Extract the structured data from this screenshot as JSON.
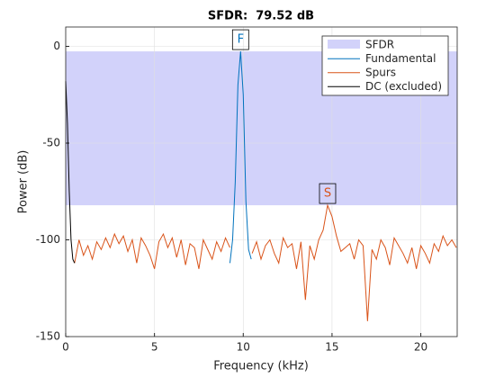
{
  "chart_data": {
    "type": "line",
    "title": "SFDR:  79.52 dB",
    "x_label": "Frequency (kHz)",
    "y_label": "Power (dB)",
    "xlim": [
      0,
      22.05
    ],
    "ylim": [
      -150,
      10
    ],
    "xticks": [
      0,
      5,
      10,
      15,
      20
    ],
    "yticks": [
      -150,
      -100,
      -50,
      0
    ],
    "grid": true,
    "legend": "upper right",
    "band": {
      "name": "SFDR",
      "color": "#d2d2fa",
      "range": [
        -82.12,
        -2.6
      ]
    },
    "series": [
      {
        "name": "Fundamental",
        "color": "#0072bd",
        "x": [
          9.25,
          9.4,
          9.55,
          9.7,
          9.85,
          10.0,
          10.15,
          10.3,
          10.45
        ],
        "values": [
          -112,
          -100,
          -70,
          -20,
          -2.6,
          -25,
          -80,
          -105,
          -110
        ]
      },
      {
        "name": "Spurs",
        "color": "#d95319",
        "x": [
          0.5,
          0.75,
          1.0,
          1.25,
          1.5,
          1.75,
          2.0,
          2.25,
          2.5,
          2.75,
          3.0,
          3.25,
          3.5,
          3.75,
          4.0,
          4.25,
          4.5,
          4.75,
          5.0,
          5.25,
          5.5,
          5.75,
          6.0,
          6.25,
          6.5,
          6.75,
          7.0,
          7.25,
          7.5,
          7.75,
          8.0,
          8.25,
          8.5,
          8.75,
          9.0,
          9.25,
          9.85,
          10.5,
          10.75,
          11.0,
          11.25,
          11.5,
          11.75,
          12.0,
          12.25,
          12.5,
          12.75,
          13.0,
          13.25,
          13.5,
          13.75,
          14.0,
          14.25,
          14.5,
          14.75,
          15.0,
          15.25,
          15.5,
          15.75,
          16.0,
          16.25,
          16.5,
          16.75,
          17.0,
          17.25,
          17.5,
          17.75,
          18.0,
          18.25,
          18.5,
          18.75,
          19.0,
          19.25,
          19.5,
          19.75,
          20.0,
          20.25,
          20.5,
          20.75,
          21.0,
          21.25,
          21.5,
          21.75,
          22.0
        ],
        "values": [
          -112,
          -100,
          -108,
          -103,
          -110,
          -101,
          -105,
          -99,
          -104,
          -97,
          -102,
          -98,
          -106,
          -100,
          -112,
          -99,
          -103,
          -108,
          -115,
          -101,
          -97,
          -104,
          -99,
          -109,
          -100,
          -113,
          -102,
          -104,
          -115,
          -100,
          -105,
          -110,
          -101,
          -106,
          -99,
          -104,
          null,
          -107,
          -101,
          -110,
          -103,
          -100,
          -107,
          -112,
          -99,
          -104,
          -102,
          -115,
          -101,
          -131,
          -103,
          -110,
          -100,
          -95,
          -82.12,
          -88,
          -98,
          -106,
          -104,
          -102,
          -110,
          -100,
          -103,
          -142,
          -105,
          -110,
          -100,
          -104,
          -113,
          -99,
          -103,
          -107,
          -112,
          -104,
          -115,
          -103,
          -107,
          -112,
          -102,
          -106,
          -98,
          -103,
          -100,
          -104
        ]
      },
      {
        "name": "DC (excluded)",
        "color": "#000000",
        "x": [
          0,
          0.1,
          0.2,
          0.3,
          0.4,
          0.5
        ],
        "values": [
          -18,
          -40,
          -75,
          -100,
          -110,
          -112
        ]
      }
    ],
    "annotations": [
      {
        "label": "F",
        "x": 9.85,
        "y": -2.6,
        "color": "#0072bd"
      },
      {
        "label": "S",
        "x": 14.75,
        "y": -82.12,
        "color": "#d95319"
      }
    ]
  }
}
